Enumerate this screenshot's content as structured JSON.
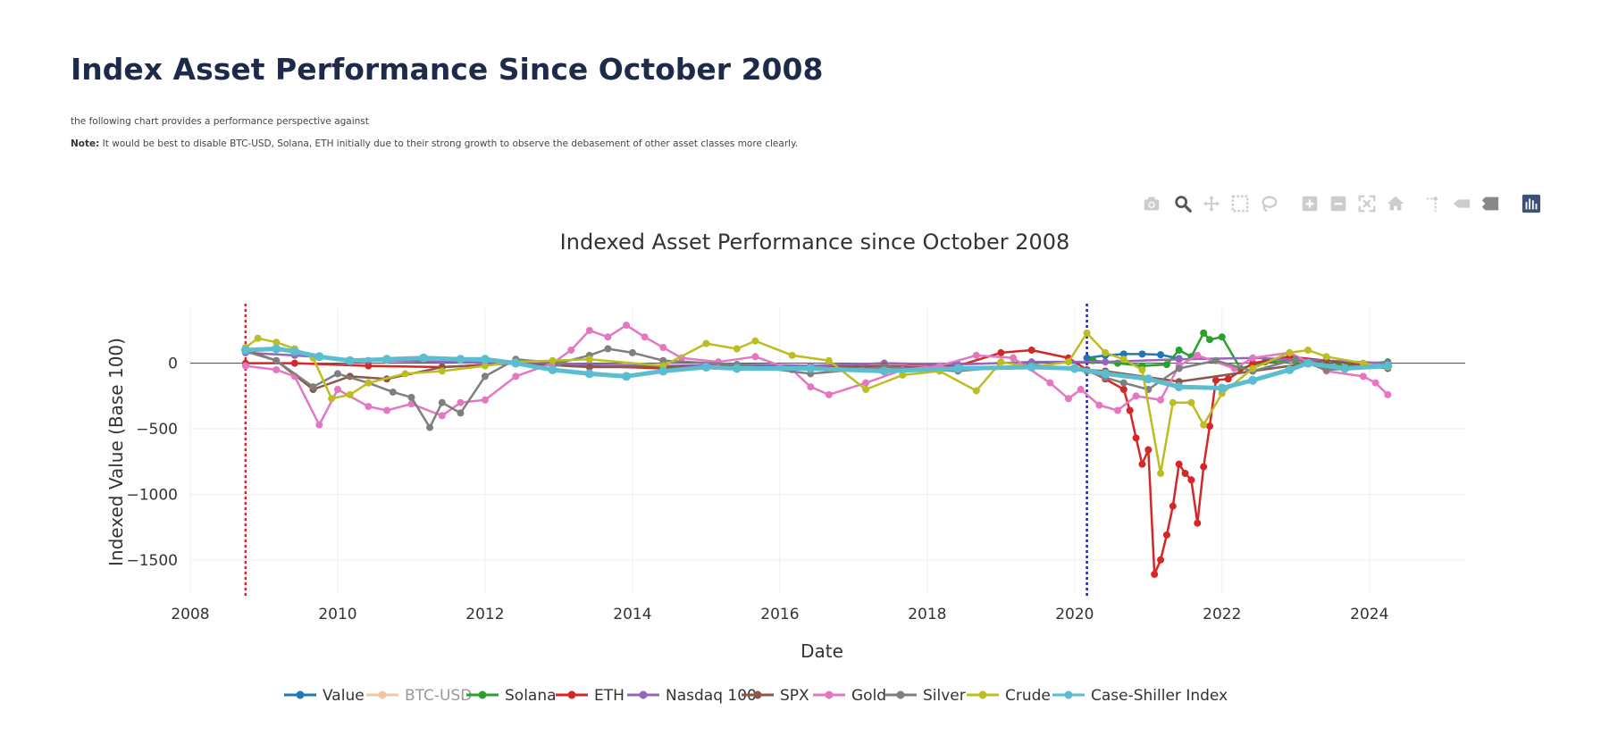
{
  "page": {
    "title": "Index Asset Performance Since October 2008",
    "intro": "the following chart provides a performance perspective against",
    "note_label": "Note:",
    "note_text": " It would be best to disable BTC-USD, Solana, ETH initially due to their strong growth to observe the debasement of other asset classes more clearly."
  },
  "modebar": [
    "camera-icon",
    "zoom-icon",
    "pan-icon",
    "box-select-icon",
    "lasso-icon",
    "zoom-in-icon",
    "zoom-out-icon",
    "autoscale-icon",
    "reset-axes-icon",
    "spike-lines-icon",
    "hover-closest-icon",
    "hover-compare-icon",
    "plotly-logo-icon"
  ],
  "chart_data": {
    "type": "line",
    "title": "Indexed Asset Performance since October 2008",
    "xlabel": "Date",
    "ylabel": "Indexed Value (Base 100)",
    "xlim": [
      2008.0,
      2025.3
    ],
    "ylim": [
      -1760,
      420
    ],
    "x_ticks": [
      "2008",
      "2010",
      "2012",
      "2014",
      "2016",
      "2018",
      "2020",
      "2022",
      "2024"
    ],
    "y_ticks": [
      {
        "value": 0,
        "label": "0"
      },
      {
        "value": -500,
        "label": "−500"
      },
      {
        "value": -1000,
        "label": "−1000"
      },
      {
        "value": -1500,
        "label": "−1500"
      }
    ],
    "grid": true,
    "legend_placement": "bottom-center",
    "vlines": [
      {
        "x": "2008-10",
        "color": "#d62728"
      },
      {
        "x": "2020-03",
        "color": "#1f1fbf"
      }
    ],
    "series": [
      {
        "name": "Value",
        "color": "#1f77b4",
        "visible": true,
        "points": [
          [
            "2020-03",
            40
          ],
          [
            "2020-06",
            60
          ],
          [
            "2020-09",
            70
          ],
          [
            "2020-12",
            70
          ],
          [
            "2021-03",
            65
          ],
          [
            "2021-06",
            35
          ]
        ]
      },
      {
        "name": "BTC-USD",
        "color": "#ffbb78",
        "visible": false,
        "points": []
      },
      {
        "name": "Solana",
        "color": "#2ca02c",
        "visible": true,
        "points": [
          [
            "2020-04",
            20
          ],
          [
            "2020-08",
            0
          ],
          [
            "2020-12",
            -20
          ],
          [
            "2021-04",
            -10
          ],
          [
            "2021-06",
            100
          ],
          [
            "2021-08",
            50
          ],
          [
            "2021-10",
            230
          ],
          [
            "2021-11",
            180
          ],
          [
            "2022-01",
            200
          ],
          [
            "2022-04",
            -40
          ],
          [
            "2022-08",
            10
          ],
          [
            "2023-01",
            20
          ],
          [
            "2023-08",
            -20
          ],
          [
            "2024-04",
            10
          ]
        ]
      },
      {
        "name": "ETH",
        "color": "#d62728",
        "visible": true,
        "points": [
          [
            "2008-10",
            0
          ],
          [
            "2009-06",
            0
          ],
          [
            "2010-06",
            -20
          ],
          [
            "2011-06",
            -30
          ],
          [
            "2012-06",
            0
          ],
          [
            "2013-06",
            -20
          ],
          [
            "2014-06",
            -40
          ],
          [
            "2015-06",
            -20
          ],
          [
            "2016-06",
            -30
          ],
          [
            "2017-06",
            0
          ],
          [
            "2018-06",
            -20
          ],
          [
            "2019-01",
            80
          ],
          [
            "2019-06",
            100
          ],
          [
            "2019-12",
            40
          ],
          [
            "2020-03",
            -50
          ],
          [
            "2020-06",
            -120
          ],
          [
            "2020-09",
            -200
          ],
          [
            "2020-10",
            -360
          ],
          [
            "2020-11",
            -570
          ],
          [
            "2020-12",
            -770
          ],
          [
            "2021-01",
            -660
          ],
          [
            "2021-02",
            -1610
          ],
          [
            "2021-03",
            -1500
          ],
          [
            "2021-04",
            -1310
          ],
          [
            "2021-05",
            -1090
          ],
          [
            "2021-06",
            -770
          ],
          [
            "2021-07",
            -840
          ],
          [
            "2021-08",
            -890
          ],
          [
            "2021-09",
            -1220
          ],
          [
            "2021-10",
            -790
          ],
          [
            "2021-11",
            -480
          ],
          [
            "2021-12",
            -130
          ],
          [
            "2022-02",
            -120
          ],
          [
            "2022-06",
            0
          ],
          [
            "2022-12",
            50
          ],
          [
            "2023-06",
            20
          ],
          [
            "2024-01",
            -20
          ],
          [
            "2024-04",
            -30
          ]
        ]
      },
      {
        "name": "Nasdaq 100",
        "color": "#9467bd",
        "visible": true,
        "points": [
          [
            "2008-10",
            80
          ],
          [
            "2009-06",
            60
          ],
          [
            "2010-06",
            20
          ],
          [
            "2011-06",
            10
          ],
          [
            "2012-06",
            0
          ],
          [
            "2013-06",
            -10
          ],
          [
            "2014-06",
            -20
          ],
          [
            "2015-06",
            -10
          ],
          [
            "2016-06",
            -20
          ],
          [
            "2017-06",
            0
          ],
          [
            "2018-06",
            -10
          ],
          [
            "2019-06",
            10
          ],
          [
            "2020-06",
            10
          ],
          [
            "2021-06",
            30
          ],
          [
            "2022-06",
            40
          ],
          [
            "2023-06",
            20
          ],
          [
            "2024-04",
            0
          ]
        ]
      },
      {
        "name": "SPX",
        "color": "#8c564b",
        "visible": true,
        "points": [
          [
            "2008-10",
            100
          ],
          [
            "2009-03",
            20
          ],
          [
            "2009-09",
            -200
          ],
          [
            "2010-03",
            -100
          ],
          [
            "2010-09",
            -120
          ],
          [
            "2011-06",
            -30
          ],
          [
            "2012-06",
            0
          ],
          [
            "2013-06",
            -30
          ],
          [
            "2014-06",
            -30
          ],
          [
            "2015-06",
            -20
          ],
          [
            "2016-06",
            -40
          ],
          [
            "2017-06",
            -20
          ],
          [
            "2018-06",
            -40
          ],
          [
            "2019-06",
            -20
          ],
          [
            "2020-06",
            -60
          ],
          [
            "2021-06",
            -140
          ],
          [
            "2022-06",
            -60
          ],
          [
            "2023-06",
            20
          ],
          [
            "2024-04",
            -40
          ]
        ]
      },
      {
        "name": "Gold",
        "color": "#e377c2",
        "visible": true,
        "points": [
          [
            "2008-10",
            -20
          ],
          [
            "2009-03",
            -50
          ],
          [
            "2009-06",
            -100
          ],
          [
            "2009-10",
            -470
          ],
          [
            "2010-01",
            -200
          ],
          [
            "2010-06",
            -330
          ],
          [
            "2010-09",
            -360
          ],
          [
            "2011-01",
            -310
          ],
          [
            "2011-06",
            -400
          ],
          [
            "2011-09",
            -300
          ],
          [
            "2012-01",
            -280
          ],
          [
            "2012-06",
            -100
          ],
          [
            "2012-12",
            0
          ],
          [
            "2013-03",
            100
          ],
          [
            "2013-06",
            250
          ],
          [
            "2013-09",
            200
          ],
          [
            "2013-12",
            290
          ],
          [
            "2014-03",
            200
          ],
          [
            "2014-06",
            120
          ],
          [
            "2014-09",
            40
          ],
          [
            "2015-03",
            10
          ],
          [
            "2015-09",
            50
          ],
          [
            "2016-03",
            -50
          ],
          [
            "2016-06",
            -180
          ],
          [
            "2016-09",
            -240
          ],
          [
            "2017-03",
            -150
          ],
          [
            "2017-09",
            -50
          ],
          [
            "2018-03",
            -20
          ],
          [
            "2018-09",
            60
          ],
          [
            "2019-03",
            40
          ],
          [
            "2019-09",
            -150
          ],
          [
            "2019-12",
            -270
          ],
          [
            "2020-02",
            -200
          ],
          [
            "2020-05",
            -320
          ],
          [
            "2020-08",
            -360
          ],
          [
            "2020-11",
            -250
          ],
          [
            "2021-03",
            -280
          ],
          [
            "2021-06",
            -20
          ],
          [
            "2021-09",
            60
          ],
          [
            "2022-03",
            -40
          ],
          [
            "2022-06",
            40
          ],
          [
            "2022-12",
            80
          ],
          [
            "2023-06",
            -60
          ],
          [
            "2023-12",
            -100
          ],
          [
            "2024-02",
            -150
          ],
          [
            "2024-04",
            -240
          ]
        ]
      },
      {
        "name": "Silver",
        "color": "#7f7f7f",
        "visible": true,
        "points": [
          [
            "2008-10",
            90
          ],
          [
            "2009-03",
            20
          ],
          [
            "2009-09",
            -180
          ],
          [
            "2010-01",
            -80
          ],
          [
            "2010-06",
            -150
          ],
          [
            "2010-10",
            -220
          ],
          [
            "2011-01",
            -260
          ],
          [
            "2011-04",
            -490
          ],
          [
            "2011-06",
            -300
          ],
          [
            "2011-09",
            -380
          ],
          [
            "2012-01",
            -100
          ],
          [
            "2012-06",
            30
          ],
          [
            "2013-01",
            0
          ],
          [
            "2013-06",
            60
          ],
          [
            "2013-09",
            110
          ],
          [
            "2014-01",
            80
          ],
          [
            "2014-06",
            20
          ],
          [
            "2015-06",
            -10
          ],
          [
            "2016-06",
            -80
          ],
          [
            "2017-06",
            -30
          ],
          [
            "2018-06",
            -60
          ],
          [
            "2019-06",
            -10
          ],
          [
            "2020-03",
            -60
          ],
          [
            "2020-06",
            -110
          ],
          [
            "2020-09",
            -150
          ],
          [
            "2021-01",
            -200
          ],
          [
            "2021-06",
            -40
          ],
          [
            "2021-12",
            20
          ],
          [
            "2022-06",
            -60
          ],
          [
            "2023-01",
            30
          ],
          [
            "2023-06",
            -50
          ],
          [
            "2024-04",
            -30
          ]
        ]
      },
      {
        "name": "Crude",
        "color": "#bcbd22",
        "visible": true,
        "points": [
          [
            "2008-10",
            120
          ],
          [
            "2008-12",
            190
          ],
          [
            "2009-03",
            160
          ],
          [
            "2009-06",
            110
          ],
          [
            "2009-09",
            40
          ],
          [
            "2009-12",
            -270
          ],
          [
            "2010-03",
            -240
          ],
          [
            "2010-06",
            -150
          ],
          [
            "2010-12",
            -80
          ],
          [
            "2011-06",
            -60
          ],
          [
            "2012-01",
            -20
          ],
          [
            "2012-06",
            10
          ],
          [
            "2012-12",
            20
          ],
          [
            "2013-06",
            30
          ],
          [
            "2014-06",
            -20
          ],
          [
            "2015-01",
            150
          ],
          [
            "2015-06",
            110
          ],
          [
            "2015-09",
            170
          ],
          [
            "2016-03",
            60
          ],
          [
            "2016-09",
            20
          ],
          [
            "2017-03",
            -200
          ],
          [
            "2017-09",
            -90
          ],
          [
            "2018-03",
            -60
          ],
          [
            "2018-09",
            -210
          ],
          [
            "2019-01",
            10
          ],
          [
            "2019-06",
            -30
          ],
          [
            "2019-12",
            10
          ],
          [
            "2020-03",
            230
          ],
          [
            "2020-06",
            80
          ],
          [
            "2020-09",
            30
          ],
          [
            "2020-12",
            -50
          ],
          [
            "2021-03",
            -840
          ],
          [
            "2021-05",
            -300
          ],
          [
            "2021-08",
            -300
          ],
          [
            "2021-10",
            -470
          ],
          [
            "2022-01",
            -230
          ],
          [
            "2022-06",
            -40
          ],
          [
            "2022-12",
            80
          ],
          [
            "2023-03",
            100
          ],
          [
            "2023-06",
            50
          ],
          [
            "2023-12",
            0
          ],
          [
            "2024-04",
            -30
          ]
        ]
      },
      {
        "name": "Case-Shiller Index",
        "color": "#5bbdd0",
        "visible": true,
        "points": [
          [
            "2008-10",
            100
          ],
          [
            "2009-03",
            110
          ],
          [
            "2009-06",
            90
          ],
          [
            "2009-10",
            50
          ],
          [
            "2010-03",
            20
          ],
          [
            "2010-09",
            30
          ],
          [
            "2011-03",
            40
          ],
          [
            "2011-09",
            30
          ],
          [
            "2012-01",
            30
          ],
          [
            "2012-06",
            0
          ],
          [
            "2012-12",
            -50
          ],
          [
            "2013-06",
            -80
          ],
          [
            "2013-12",
            -100
          ],
          [
            "2014-06",
            -60
          ],
          [
            "2015-01",
            -30
          ],
          [
            "2015-06",
            -40
          ],
          [
            "2016-06",
            -40
          ],
          [
            "2017-06",
            -60
          ],
          [
            "2018-06",
            -40
          ],
          [
            "2019-06",
            -30
          ],
          [
            "2020-01",
            -40
          ],
          [
            "2020-06",
            -80
          ],
          [
            "2021-01",
            -120
          ],
          [
            "2021-06",
            -180
          ],
          [
            "2022-01",
            -190
          ],
          [
            "2022-06",
            -130
          ],
          [
            "2022-12",
            -50
          ],
          [
            "2023-03",
            0
          ],
          [
            "2023-09",
            -40
          ],
          [
            "2024-04",
            -20
          ]
        ]
      }
    ]
  }
}
